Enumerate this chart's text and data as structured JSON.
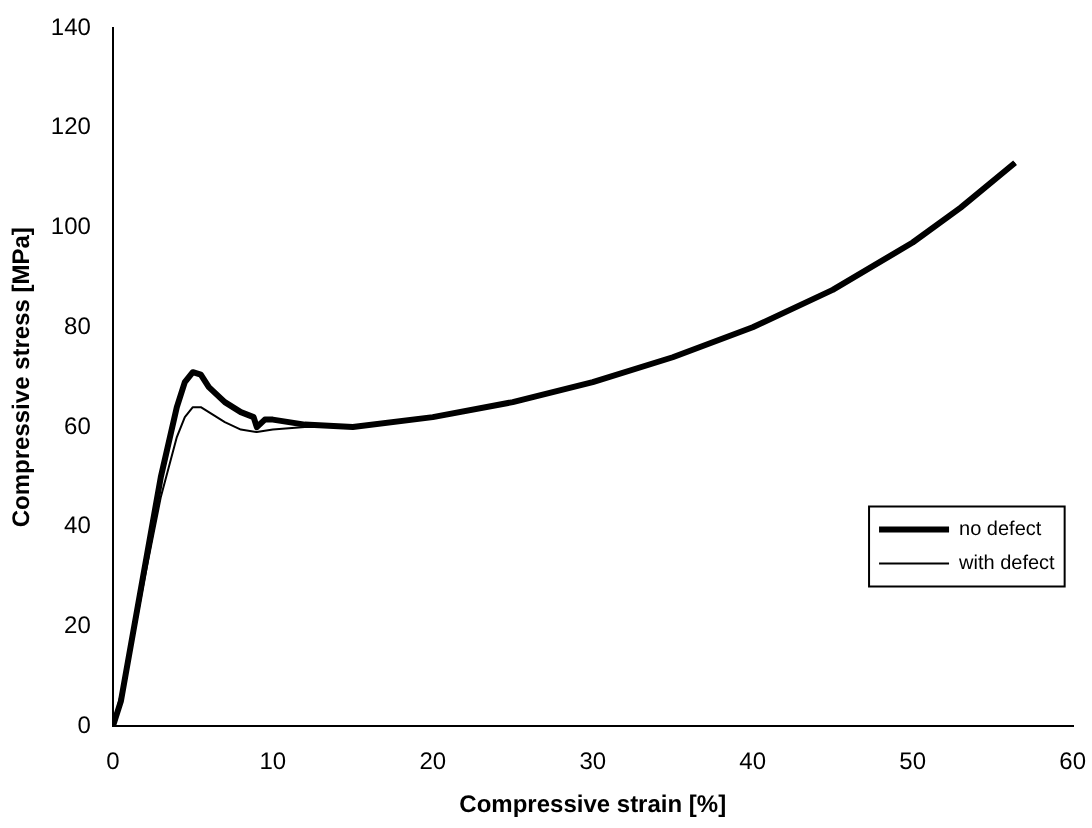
{
  "chart_data": {
    "type": "line",
    "xlabel": "Compressive strain [%]",
    "ylabel": "Compressive stress [MPa]",
    "xlim": [
      0,
      60
    ],
    "xticks": [
      0,
      10,
      20,
      30,
      40,
      50,
      60
    ],
    "ylim": [
      0,
      140
    ],
    "yticks": [
      0,
      20,
      40,
      60,
      80,
      100,
      120,
      140
    ],
    "grid": false,
    "legend": "bottom right",
    "marker": "none",
    "line_style": "solid",
    "series": [
      {
        "name": "no defect",
        "color": "#000000",
        "x": [
          0,
          0.5,
          1,
          2,
          3,
          4,
          4.5,
          5,
          5.5,
          6,
          7,
          8,
          8.8,
          9,
          9.5,
          10,
          11,
          12,
          15,
          20,
          25,
          30,
          35,
          40,
          45,
          50,
          53,
          56.4
        ],
        "values": [
          0,
          5,
          14,
          32,
          50,
          64,
          69,
          71,
          70.5,
          68,
          65,
          63,
          62,
          60,
          61.5,
          61.5,
          61,
          60.5,
          60,
          62,
          65,
          69,
          74,
          80,
          87.5,
          97,
          104,
          113
        ]
      },
      {
        "name": "with defect",
        "color": "#000000",
        "x": [
          0,
          1,
          2,
          3,
          4,
          4.5,
          5,
          5.5,
          6,
          7,
          8,
          9,
          10,
          12,
          15,
          20,
          25,
          30,
          35,
          40,
          45,
          50,
          53,
          56.4
        ],
        "values": [
          0,
          13,
          30,
          46,
          58,
          62,
          64,
          64,
          63,
          61,
          59.5,
          59,
          59.5,
          60,
          60,
          62,
          65,
          69,
          74,
          80,
          87.5,
          97,
          104,
          113
        ]
      }
    ]
  }
}
